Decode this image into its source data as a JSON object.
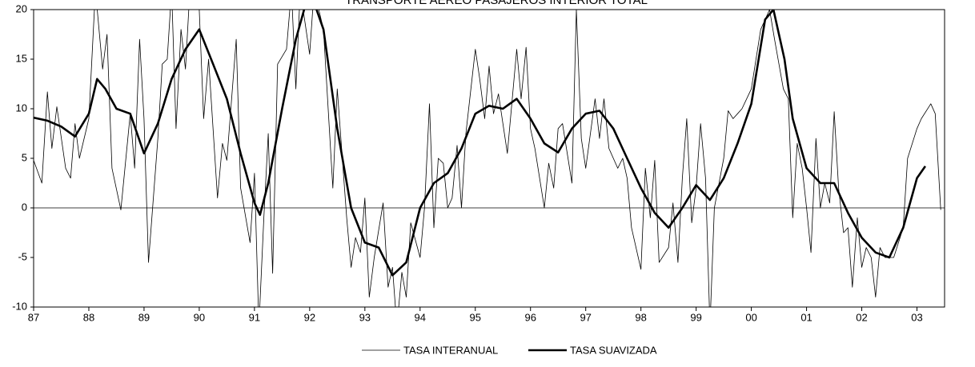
{
  "chart_data": {
    "type": "line",
    "title": "TRANSPORTE AEREO PASAJEROS INTERIOR TOTAL",
    "xlim": [
      1987,
      2003.5
    ],
    "ylim": [
      -10,
      20
    ],
    "xticks": [
      {
        "value": 1987,
        "label": "87"
      },
      {
        "value": 1988,
        "label": "88"
      },
      {
        "value": 1989,
        "label": "89"
      },
      {
        "value": 1990,
        "label": "90"
      },
      {
        "value": 1991,
        "label": "91"
      },
      {
        "value": 1992,
        "label": "92"
      },
      {
        "value": 1993,
        "label": "93"
      },
      {
        "value": 1994,
        "label": "94"
      },
      {
        "value": 1995,
        "label": "95"
      },
      {
        "value": 1996,
        "label": "96"
      },
      {
        "value": 1997,
        "label": "97"
      },
      {
        "value": 1998,
        "label": "98"
      },
      {
        "value": 1999,
        "label": "99"
      },
      {
        "value": 2000,
        "label": "00"
      },
      {
        "value": 2001,
        "label": "01"
      },
      {
        "value": 2002,
        "label": "02"
      },
      {
        "value": 2003,
        "label": "03"
      }
    ],
    "yticks": [
      20,
      15,
      10,
      5,
      0,
      -5,
      -10
    ],
    "series": [
      {
        "name": "TASA INTERANUAL",
        "color": "#000000",
        "width": 0.8,
        "x": [
          1987.0,
          1987.15,
          1987.25,
          1987.33,
          1987.42,
          1987.58,
          1987.67,
          1987.75,
          1987.83,
          1988.0,
          1988.12,
          1988.25,
          1988.33,
          1988.42,
          1988.58,
          1988.75,
          1988.83,
          1988.92,
          1989.0,
          1989.08,
          1989.25,
          1989.33,
          1989.42,
          1989.5,
          1989.58,
          1989.67,
          1989.75,
          1989.83,
          1990.0,
          1990.08,
          1990.17,
          1990.33,
          1990.42,
          1990.5,
          1990.67,
          1990.75,
          1990.92,
          1991.0,
          1991.08,
          1991.17,
          1991.25,
          1991.33,
          1991.42,
          1991.58,
          1991.67,
          1991.75,
          1991.83,
          1992.0,
          1992.08,
          1992.25,
          1992.42,
          1992.5,
          1992.67,
          1992.75,
          1992.83,
          1992.92,
          1993.0,
          1993.08,
          1993.17,
          1993.33,
          1993.42,
          1993.5,
          1993.58,
          1993.67,
          1993.75,
          1993.83,
          1994.0,
          1994.08,
          1994.17,
          1994.25,
          1994.33,
          1994.42,
          1994.5,
          1994.58,
          1994.67,
          1994.75,
          1994.83,
          1995.0,
          1995.08,
          1995.17,
          1995.25,
          1995.33,
          1995.42,
          1995.58,
          1995.75,
          1995.83,
          1995.92,
          1996.0,
          1996.08,
          1996.25,
          1996.33,
          1996.42,
          1996.5,
          1996.58,
          1996.75,
          1996.83,
          1996.92,
          1997.0,
          1997.17,
          1997.25,
          1997.33,
          1997.42,
          1997.58,
          1997.67,
          1997.75,
          1997.83,
          1998.0,
          1998.08,
          1998.17,
          1998.25,
          1998.33,
          1998.5,
          1998.58,
          1998.67,
          1998.75,
          1998.83,
          1998.92,
          1999.0,
          1999.08,
          1999.17,
          1999.25,
          1999.33,
          1999.5,
          1999.58,
          1999.67,
          1999.75,
          1999.83,
          2000.0,
          2000.17,
          2000.33,
          2000.42,
          2000.58,
          2000.67,
          2000.75,
          2000.83,
          2000.92,
          2001.0,
          2001.08,
          2001.17,
          2001.25,
          2001.33,
          2001.42,
          2001.5,
          2001.58,
          2001.67,
          2001.75,
          2001.83,
          2001.92,
          2002.0,
          2002.08,
          2002.17,
          2002.25,
          2002.33,
          2002.42,
          2002.58,
          2002.75,
          2002.83,
          2003.0,
          2003.08,
          2003.25,
          2003.33,
          2003.43
        ],
        "values": [
          4.8,
          2.5,
          11.7,
          6,
          10.2,
          4,
          3,
          8.5,
          5,
          9,
          22,
          14,
          17.5,
          4,
          -0.2,
          9.5,
          4,
          17,
          9,
          -5.5,
          7,
          14.5,
          15,
          22,
          8,
          18,
          14,
          22,
          20,
          9,
          15,
          1,
          6.5,
          4.8,
          17,
          2,
          -3.5,
          3.5,
          -12,
          -1,
          7.5,
          -6.6,
          14.5,
          16,
          22,
          12,
          22,
          15.5,
          22,
          18,
          2,
          12,
          -1,
          -6,
          -3,
          -4.5,
          1,
          -9,
          -5,
          0.5,
          -8,
          -6,
          -12,
          -6.5,
          -9,
          -1.5,
          -5,
          0,
          10.5,
          -2,
          5,
          4.5,
          0,
          1,
          6.3,
          0,
          7.5,
          16,
          13,
          9,
          14.3,
          9.5,
          11.5,
          5.5,
          16,
          11,
          16.2,
          8,
          6,
          0,
          4.5,
          2,
          8,
          8.5,
          2.5,
          20,
          7,
          4,
          11,
          7,
          11,
          6,
          4,
          5,
          3,
          -2,
          -6.2,
          4,
          -1,
          4.8,
          -5.5,
          -4,
          0.5,
          -5.5,
          3,
          9,
          -1.5,
          2,
          8.5,
          3,
          -12,
          0,
          5,
          9.8,
          9,
          9.5,
          10,
          12,
          18,
          20,
          17,
          12,
          11,
          -1,
          6.5,
          4,
          0,
          -4.5,
          7,
          0,
          2.5,
          0.5,
          9.7,
          2,
          -2.5,
          -2,
          -8,
          -1,
          -6,
          -4,
          -5,
          -9,
          -4,
          -5,
          -5,
          -2,
          5,
          8,
          9,
          10.5,
          9.5,
          -0.2
        ]
      },
      {
        "name": "TASA SUAVIZADA",
        "color": "#000000",
        "width": 2.6,
        "x": [
          1987.0,
          1987.25,
          1987.5,
          1987.75,
          1988.0,
          1988.15,
          1988.3,
          1988.5,
          1988.75,
          1989.0,
          1989.25,
          1989.5,
          1989.75,
          1990.0,
          1990.25,
          1990.5,
          1990.75,
          1991.0,
          1991.1,
          1991.25,
          1991.5,
          1991.75,
          1992.0,
          1992.25,
          1992.5,
          1992.75,
          1993.0,
          1993.25,
          1993.5,
          1993.75,
          1994.0,
          1994.25,
          1994.5,
          1994.75,
          1995.0,
          1995.25,
          1995.5,
          1995.75,
          1996.0,
          1996.25,
          1996.5,
          1996.75,
          1997.0,
          1997.25,
          1997.5,
          1997.75,
          1998.0,
          1998.25,
          1998.5,
          1998.75,
          1999.0,
          1999.25,
          1999.5,
          1999.75,
          2000.0,
          2000.25,
          2000.4,
          2000.6,
          2000.75,
          2001.0,
          2001.25,
          2001.5,
          2001.75,
          2002.0,
          2002.25,
          2002.5,
          2002.75,
          2003.0,
          2003.15
        ],
        "values": [
          9.1,
          8.8,
          8.2,
          7.2,
          9.5,
          13,
          12,
          10,
          9.5,
          5.5,
          8.5,
          13,
          16,
          18,
          14.5,
          11,
          5.5,
          0.5,
          -0.7,
          2.5,
          10,
          17,
          22,
          18,
          8,
          0,
          -3.5,
          -4,
          -6.8,
          -5.5,
          0,
          2.5,
          3.5,
          6,
          9.5,
          10.3,
          10,
          11,
          9,
          6.5,
          5.6,
          8,
          9.5,
          9.8,
          8,
          5,
          2,
          -0.5,
          -2,
          0,
          2.3,
          0.8,
          3,
          6.5,
          10.5,
          19,
          20,
          15,
          9,
          4,
          2.5,
          2.5,
          -0.5,
          -3,
          -4.5,
          -5,
          -2,
          3,
          4.2
        ]
      }
    ]
  }
}
